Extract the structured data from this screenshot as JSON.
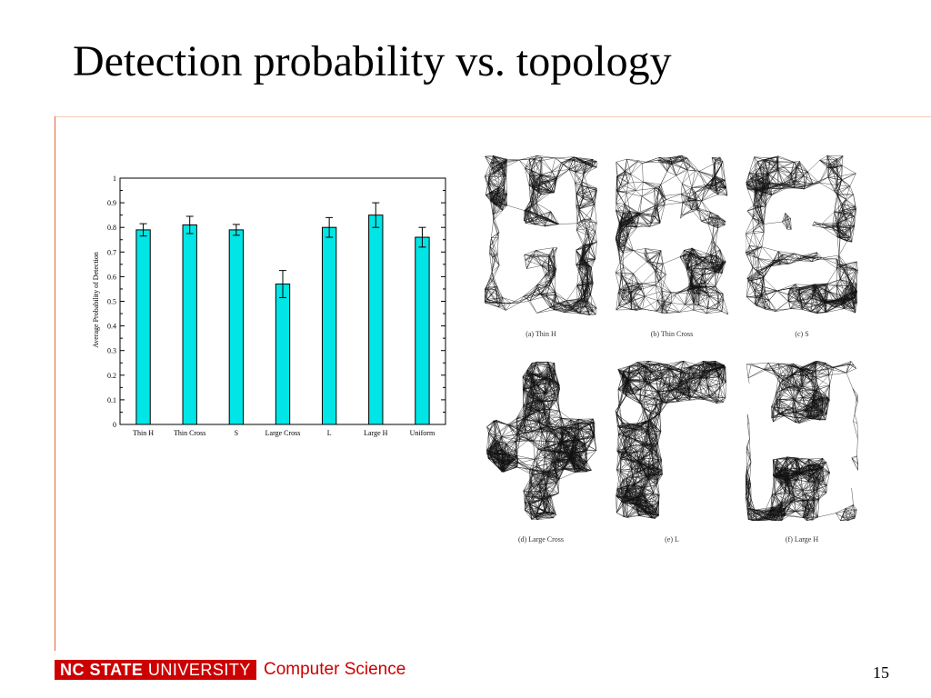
{
  "title": "Detection probability vs. topology",
  "chart_data": {
    "type": "bar",
    "ylabel": "Average Probability of Detection",
    "xlabel": "",
    "ylim": [
      0,
      1
    ],
    "yticks": [
      "0",
      "0.1",
      "0.2",
      "0.3",
      "0.4",
      "0.5",
      "0.6",
      "0.7",
      "0.8",
      "0.9",
      "1"
    ],
    "categories": [
      "Thin H",
      "Thin Cross",
      "S",
      "Large Cross",
      "L",
      "Large H",
      "Uniform"
    ],
    "values": [
      0.79,
      0.81,
      0.79,
      0.57,
      0.8,
      0.85,
      0.76
    ],
    "errors": [
      0.025,
      0.035,
      0.022,
      0.055,
      0.04,
      0.05,
      0.04
    ],
    "bar_color": "#00e5e5",
    "grid": false
  },
  "topologies": [
    {
      "caption": "(a) Thin H",
      "shape": "thin-h"
    },
    {
      "caption": "(b) Thin Cross",
      "shape": "thin-cross"
    },
    {
      "caption": "(c) S",
      "shape": "s"
    },
    {
      "caption": "(d) Large Cross",
      "shape": "large-cross"
    },
    {
      "caption": "(e) L",
      "shape": "l"
    },
    {
      "caption": "(f) Large H",
      "shape": "large-h"
    }
  ],
  "footer": {
    "logo_bold": "NC STATE",
    "logo_light": "UNIVERSITY",
    "department": "Computer Science",
    "page_number": "15"
  },
  "colors": {
    "brand_red": "#cc0000",
    "rule": "#e8633a"
  }
}
